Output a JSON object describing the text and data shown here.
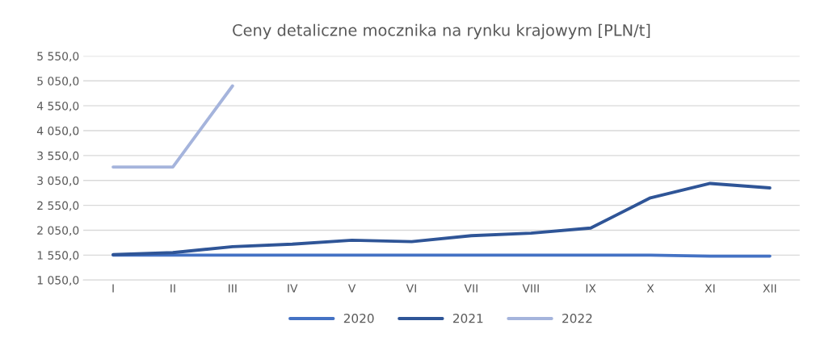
{
  "chart_data": {
    "type": "line",
    "title": "Ceny detaliczne mocznika na rynku krajowym [PLN/t]",
    "categories": [
      "I",
      "II",
      "III",
      "IV",
      "V",
      "VI",
      "VII",
      "VIII",
      "IX",
      "X",
      "XI",
      "XII"
    ],
    "series": [
      {
        "name": "2020",
        "color": "#4472c4",
        "values": [
          1550,
          1550,
          1550,
          1550,
          1550,
          1550,
          1550,
          1550,
          1550,
          1550,
          1530,
          1530
        ]
      },
      {
        "name": "2021",
        "color": "#2f5597",
        "values": [
          1560,
          1600,
          1720,
          1770,
          1850,
          1820,
          1940,
          1990,
          2095,
          2700,
          2990,
          2900
        ]
      },
      {
        "name": "2022",
        "color": "#a5b4dc",
        "values": [
          3320,
          3320,
          4950,
          null,
          null,
          null,
          null,
          null,
          null,
          null,
          null,
          null
        ]
      }
    ],
    "ylim": [
      1050,
      5550
    ],
    "yticks": [
      {
        "value": 1050,
        "label": "1 050,0"
      },
      {
        "value": 1550,
        "label": "1 550,0"
      },
      {
        "value": 2050,
        "label": "2 050,0"
      },
      {
        "value": 2550,
        "label": "2 550,0"
      },
      {
        "value": 3050,
        "label": "3 050,0"
      },
      {
        "value": 3550,
        "label": "3 550,0"
      },
      {
        "value": 4050,
        "label": "4 050,0"
      },
      {
        "value": 4550,
        "label": "4 550,0"
      },
      {
        "value": 5050,
        "label": "5 050,0"
      },
      {
        "value": 5550,
        "label": "5 550,0"
      }
    ],
    "grid": "y",
    "legend": "bottom",
    "marker": "none",
    "line_style": "solid"
  }
}
